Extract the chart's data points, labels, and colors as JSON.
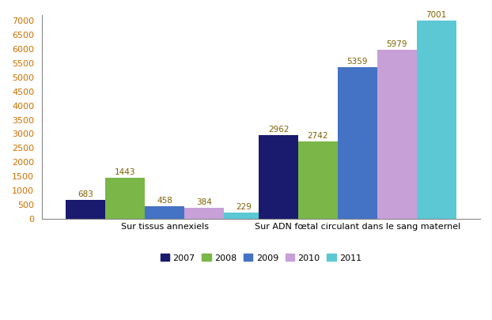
{
  "groups": [
    "Sur tissus annexiels",
    "Sur ADN fœtal circulant dans le sang maternel"
  ],
  "years": [
    "2007",
    "2008",
    "2009",
    "2010",
    "2011"
  ],
  "values": {
    "Sur tissus annexiels": [
      683,
      1443,
      458,
      384,
      229
    ],
    "Sur ADN fœtal circulant dans le sang maternel": [
      2962,
      2742,
      5359,
      5979,
      7001
    ]
  },
  "colors": {
    "2007": "#1a1a6e",
    "2008": "#7ab648",
    "2009": "#4472c4",
    "2010": "#c8a0d8",
    "2011": "#5bc8d4"
  },
  "ylim": [
    0,
    7200
  ],
  "yticks": [
    0,
    500,
    1000,
    1500,
    2000,
    2500,
    3000,
    3500,
    4000,
    4500,
    5000,
    5500,
    6000,
    6500,
    7000
  ],
  "bar_width": 0.09,
  "group_centers": [
    0.28,
    0.72
  ],
  "label_fontsize": 7.5,
  "legend_fontsize": 8,
  "axis_fontsize": 8,
  "background_color": "#ffffff",
  "label_color": "#7f6000"
}
